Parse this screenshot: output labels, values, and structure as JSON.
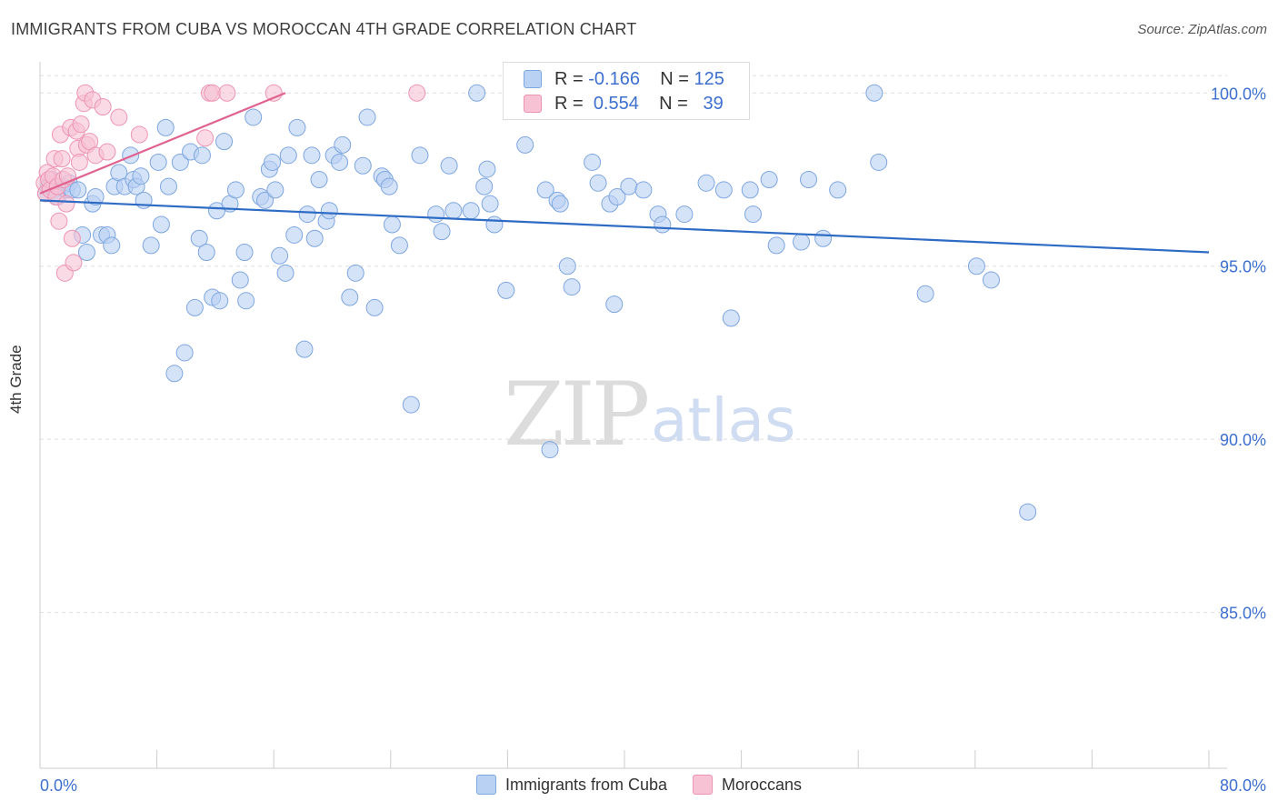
{
  "header": {
    "title": "IMMIGRANTS FROM CUBA VS MOROCCAN 4TH GRADE CORRELATION CHART",
    "source": "Source: ZipAtlas.com"
  },
  "watermark": {
    "zip": "ZIP",
    "atlas": "atlas"
  },
  "colors": {
    "cuba_fill": "#b9d1f3",
    "cuba_stroke": "#7ea6e0",
    "cuba_line": "#2d6bc4",
    "moroccan_fill": "#f7c2d3",
    "moroccan_stroke": "#ee94b3",
    "moroccan_line": "#e0628f",
    "tick_label": "#3d6fcf",
    "grid": "#dddddd"
  },
  "legend": {
    "rows": [
      {
        "r_label": "R =",
        "r_value": "-0.166",
        "n_label": "N =",
        "n_value": "125"
      },
      {
        "r_label": "R =",
        "r_value": "0.554",
        "n_label": "N =",
        "n_value": "39"
      }
    ],
    "bottom": [
      "Immigrants from Cuba",
      "Moroccans"
    ]
  },
  "chart_data": {
    "type": "scatter",
    "title": "IMMIGRANTS FROM CUBA VS MOROCCAN 4TH GRADE CORRELATION CHART",
    "xlabel": "",
    "ylabel": "4th Grade",
    "xlim": [
      0,
      80
    ],
    "ylim": [
      80.5,
      100.9
    ],
    "x_tick_labels": [
      {
        "value": 0,
        "label": "0.0%"
      },
      {
        "value": 80,
        "label": "80.0%"
      }
    ],
    "y_tick_labels": [
      {
        "value": 100,
        "label": "100.0%"
      },
      {
        "value": 95,
        "label": "95.0%"
      },
      {
        "value": 90,
        "label": "90.0%"
      },
      {
        "value": 85,
        "label": "85.0%"
      }
    ],
    "grid": true,
    "legend_position": "top-center",
    "series": [
      {
        "name": "Immigrants from Cuba",
        "r": -0.166,
        "n": 125,
        "trend": {
          "x0": 0,
          "y0": 96.9,
          "x1": 80,
          "y1": 95.4
        },
        "points": [
          [
            0.4,
            97.1
          ],
          [
            0.6,
            97.3
          ],
          [
            0.8,
            97.5
          ],
          [
            1.0,
            97.2
          ],
          [
            1.2,
            97.0
          ],
          [
            1.5,
            97.3
          ],
          [
            1.8,
            97.2
          ],
          [
            2.0,
            97.4
          ],
          [
            2.2,
            97.2
          ],
          [
            2.6,
            97.2
          ],
          [
            2.9,
            95.9
          ],
          [
            3.2,
            95.4
          ],
          [
            3.6,
            96.8
          ],
          [
            3.8,
            97.0
          ],
          [
            4.2,
            95.9
          ],
          [
            4.6,
            95.9
          ],
          [
            4.9,
            95.6
          ],
          [
            5.1,
            97.3
          ],
          [
            5.4,
            97.7
          ],
          [
            5.8,
            97.3
          ],
          [
            6.2,
            98.2
          ],
          [
            6.4,
            97.5
          ],
          [
            6.6,
            97.3
          ],
          [
            6.9,
            97.6
          ],
          [
            7.1,
            96.9
          ],
          [
            7.6,
            95.6
          ],
          [
            8.1,
            98.0
          ],
          [
            8.3,
            96.2
          ],
          [
            8.6,
            99.0
          ],
          [
            8.8,
            97.3
          ],
          [
            9.2,
            91.9
          ],
          [
            9.6,
            98.0
          ],
          [
            9.9,
            92.5
          ],
          [
            10.3,
            98.3
          ],
          [
            10.6,
            93.8
          ],
          [
            10.9,
            95.8
          ],
          [
            11.1,
            98.2
          ],
          [
            11.4,
            95.4
          ],
          [
            11.8,
            94.1
          ],
          [
            12.1,
            96.6
          ],
          [
            12.3,
            94.0
          ],
          [
            12.6,
            98.6
          ],
          [
            13.0,
            96.8
          ],
          [
            13.4,
            97.2
          ],
          [
            13.7,
            94.6
          ],
          [
            14.0,
            95.4
          ],
          [
            14.1,
            94.0
          ],
          [
            14.6,
            99.3
          ],
          [
            15.1,
            97.0
          ],
          [
            15.4,
            96.9
          ],
          [
            15.7,
            97.8
          ],
          [
            15.9,
            98.0
          ],
          [
            16.1,
            97.2
          ],
          [
            16.4,
            95.3
          ],
          [
            16.8,
            94.8
          ],
          [
            17.0,
            98.2
          ],
          [
            17.4,
            95.9
          ],
          [
            17.6,
            99.0
          ],
          [
            18.1,
            92.6
          ],
          [
            18.3,
            96.5
          ],
          [
            18.6,
            98.2
          ],
          [
            18.8,
            95.8
          ],
          [
            19.1,
            97.5
          ],
          [
            19.6,
            96.3
          ],
          [
            19.8,
            96.6
          ],
          [
            20.1,
            98.2
          ],
          [
            20.5,
            98.0
          ],
          [
            20.7,
            98.5
          ],
          [
            21.2,
            94.1
          ],
          [
            21.6,
            94.8
          ],
          [
            22.1,
            97.9
          ],
          [
            22.4,
            99.3
          ],
          [
            22.9,
            93.8
          ],
          [
            23.4,
            97.6
          ],
          [
            23.6,
            97.5
          ],
          [
            23.9,
            97.3
          ],
          [
            24.1,
            96.2
          ],
          [
            24.6,
            95.6
          ],
          [
            25.4,
            91.0
          ],
          [
            26.0,
            98.2
          ],
          [
            27.1,
            96.5
          ],
          [
            27.5,
            96.0
          ],
          [
            28.0,
            97.9
          ],
          [
            28.3,
            96.6
          ],
          [
            29.5,
            96.6
          ],
          [
            29.9,
            100.0
          ],
          [
            30.4,
            97.3
          ],
          [
            30.6,
            97.8
          ],
          [
            30.8,
            96.8
          ],
          [
            31.1,
            96.2
          ],
          [
            31.9,
            94.3
          ],
          [
            33.2,
            98.5
          ],
          [
            34.6,
            97.2
          ],
          [
            34.9,
            89.7
          ],
          [
            35.4,
            96.9
          ],
          [
            35.6,
            96.8
          ],
          [
            36.1,
            95.0
          ],
          [
            36.4,
            94.4
          ],
          [
            37.8,
            98.0
          ],
          [
            38.2,
            97.4
          ],
          [
            39.0,
            96.8
          ],
          [
            39.3,
            93.9
          ],
          [
            39.5,
            97.0
          ],
          [
            40.3,
            97.3
          ],
          [
            41.3,
            97.2
          ],
          [
            42.3,
            96.5
          ],
          [
            42.6,
            96.2
          ],
          [
            44.1,
            96.5
          ],
          [
            45.6,
            97.4
          ],
          [
            46.8,
            97.2
          ],
          [
            47.3,
            93.5
          ],
          [
            48.6,
            97.2
          ],
          [
            48.8,
            96.5
          ],
          [
            49.9,
            97.5
          ],
          [
            50.4,
            95.6
          ],
          [
            52.1,
            95.7
          ],
          [
            52.6,
            97.5
          ],
          [
            53.6,
            95.8
          ],
          [
            54.6,
            97.2
          ],
          [
            57.1,
            100.0
          ],
          [
            57.4,
            98.0
          ],
          [
            60.6,
            94.2
          ],
          [
            64.1,
            95.0
          ],
          [
            65.1,
            94.6
          ],
          [
            67.6,
            87.9
          ]
        ]
      },
      {
        "name": "Moroccans",
        "r": 0.554,
        "n": 39,
        "trend": {
          "x0": 0,
          "y0": 97.1,
          "x1": 16.8,
          "y1": 100.0
        },
        "points": [
          [
            0.3,
            97.4
          ],
          [
            0.4,
            97.1
          ],
          [
            0.5,
            97.7
          ],
          [
            0.6,
            97.5
          ],
          [
            0.7,
            97.2
          ],
          [
            0.9,
            97.6
          ],
          [
            1.0,
            98.1
          ],
          [
            1.1,
            97.0
          ],
          [
            1.2,
            97.3
          ],
          [
            1.3,
            96.3
          ],
          [
            1.4,
            98.8
          ],
          [
            1.5,
            98.1
          ],
          [
            1.6,
            97.5
          ],
          [
            1.7,
            94.8
          ],
          [
            1.8,
            96.8
          ],
          [
            1.9,
            97.6
          ],
          [
            2.1,
            99.0
          ],
          [
            2.2,
            95.8
          ],
          [
            2.3,
            95.1
          ],
          [
            2.5,
            98.9
          ],
          [
            2.6,
            98.4
          ],
          [
            2.7,
            98.0
          ],
          [
            2.8,
            99.1
          ],
          [
            3.0,
            99.7
          ],
          [
            3.1,
            100.0
          ],
          [
            3.2,
            98.5
          ],
          [
            3.4,
            98.6
          ],
          [
            3.6,
            99.8
          ],
          [
            3.8,
            98.2
          ],
          [
            4.3,
            99.6
          ],
          [
            4.6,
            98.3
          ],
          [
            5.4,
            99.3
          ],
          [
            6.8,
            98.8
          ],
          [
            11.3,
            98.7
          ],
          [
            11.6,
            100.0
          ],
          [
            11.8,
            100.0
          ],
          [
            12.8,
            100.0
          ],
          [
            16.0,
            100.0
          ],
          [
            25.8,
            100.0
          ]
        ]
      }
    ]
  }
}
